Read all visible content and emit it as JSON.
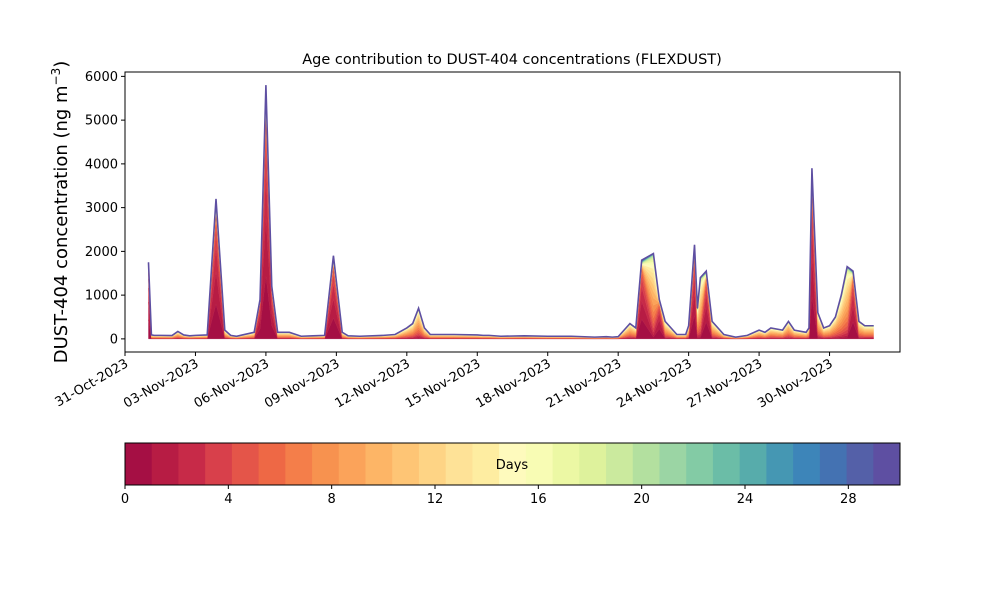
{
  "chart_data": {
    "type": "area",
    "title": "Age contribution to DUST-404 concentrations (FLEXDUST)",
    "xlabel": "",
    "ylabel": "DUST-404 concentration (ng m",
    "ylabel_sup": "−3",
    "ylabel_close": ")",
    "xlim": [
      "2023-10-31",
      "2023-12-03"
    ],
    "ylim": [
      -300,
      6100
    ],
    "x_ticks": [
      "31-Oct-2023",
      "03-Nov-2023",
      "06-Nov-2023",
      "09-Nov-2023",
      "12-Nov-2023",
      "15-Nov-2023",
      "18-Nov-2023",
      "21-Nov-2023",
      "24-Nov-2023",
      "27-Nov-2023",
      "30-Nov-2023"
    ],
    "y_ticks": [
      0,
      1000,
      2000,
      3000,
      4000,
      5000,
      6000
    ],
    "total_series": {
      "name": "",
      "x": [
        "2023-11-01 00:00",
        "2023-11-01 03:00",
        "2023-11-01 06:00",
        "2023-11-01 12:00",
        "2023-11-02 00:00",
        "2023-11-02 06:00",
        "2023-11-02 12:00",
        "2023-11-02 18:00",
        "2023-11-03 00:00",
        "2023-11-03 12:00",
        "2023-11-03 21:00",
        "2023-11-04 06:00",
        "2023-11-04 12:00",
        "2023-11-04 18:00",
        "2023-11-05 00:00",
        "2023-11-05 12:00",
        "2023-11-05 18:00",
        "2023-11-06 00:00",
        "2023-11-06 06:00",
        "2023-11-06 12:00",
        "2023-11-07 00:00",
        "2023-11-07 12:00",
        "2023-11-08 00:00",
        "2023-11-08 12:00",
        "2023-11-08 21:00",
        "2023-11-09 06:00",
        "2023-11-09 12:00",
        "2023-11-10 00:00",
        "2023-11-11 00:00",
        "2023-11-11 12:00",
        "2023-11-12 00:00",
        "2023-11-12 06:00",
        "2023-11-12 12:00",
        "2023-11-12 18:00",
        "2023-11-13 00:00",
        "2023-11-14 00:00",
        "2023-11-15 00:00",
        "2023-11-15 06:00",
        "2023-11-15 12:00",
        "2023-11-16 00:00",
        "2023-11-17 00:00",
        "2023-11-18 00:00",
        "2023-11-19 00:00",
        "2023-11-20 00:00",
        "2023-11-20 12:00",
        "2023-11-20 18:00",
        "2023-11-21 00:00",
        "2023-11-21 06:00",
        "2023-11-21 12:00",
        "2023-11-21 18:00",
        "2023-11-22 00:00",
        "2023-11-22 12:00",
        "2023-11-22 18:00",
        "2023-11-23 00:00",
        "2023-11-23 12:00",
        "2023-11-23 21:00",
        "2023-11-24 00:00",
        "2023-11-24 06:00",
        "2023-11-24 09:00",
        "2023-11-24 12:00",
        "2023-11-24 18:00",
        "2023-11-25 00:00",
        "2023-11-25 12:00",
        "2023-11-26 00:00",
        "2023-11-26 12:00",
        "2023-11-27 00:00",
        "2023-11-27 06:00",
        "2023-11-27 12:00",
        "2023-11-28 00:00",
        "2023-11-28 06:00",
        "2023-11-28 12:00",
        "2023-11-29 00:00",
        "2023-11-29 03:00",
        "2023-11-29 06:00",
        "2023-11-29 12:00",
        "2023-11-29 18:00",
        "2023-11-30 00:00",
        "2023-11-30 06:00",
        "2023-11-30 12:00",
        "2023-11-30 18:00",
        "2023-12-01 00:00",
        "2023-12-01 06:00",
        "2023-12-01 12:00",
        "2023-12-01 21:00"
      ],
      "y": [
        1750,
        90,
        80,
        80,
        75,
        170,
        90,
        70,
        80,
        90,
        3200,
        200,
        80,
        60,
        90,
        150,
        900,
        5800,
        1200,
        150,
        150,
        60,
        70,
        80,
        1900,
        150,
        70,
        60,
        80,
        100,
        250,
        350,
        700,
        250,
        100,
        100,
        90,
        80,
        80,
        60,
        70,
        60,
        60,
        40,
        50,
        40,
        50,
        200,
        350,
        250,
        1800,
        1950,
        900,
        400,
        100,
        100,
        300,
        2150,
        700,
        1400,
        1550,
        400,
        100,
        40,
        80,
        200,
        150,
        250,
        200,
        400,
        200,
        150,
        250,
        3900,
        600,
        250,
        300,
        500,
        1000,
        1650,
        1550,
        400,
        300,
        300
      ]
    },
    "age_bins_days": [
      0,
      30,
      1
    ],
    "colorbar": {
      "label": "Days",
      "ticks": [
        0,
        4,
        8,
        12,
        16,
        20,
        24,
        28
      ],
      "colors": [
        "#a50f44",
        "#b71c44",
        "#c72a48",
        "#d8404b",
        "#e45549",
        "#ee6845",
        "#f47e4a",
        "#f7924f",
        "#fba35a",
        "#fdb566",
        "#fec575",
        "#fed485",
        "#fee297",
        "#feeda1",
        "#fefabd",
        "#f8fcb4",
        "#ecf8a4",
        "#def29c",
        "#cbea9e",
        "#b3e09f",
        "#9bd5a4",
        "#83cba5",
        "#6bbda7",
        "#57acab",
        "#4597b3",
        "#3d85b9",
        "#4472b2",
        "#5460a8",
        "#5e4fa2"
      ]
    }
  }
}
